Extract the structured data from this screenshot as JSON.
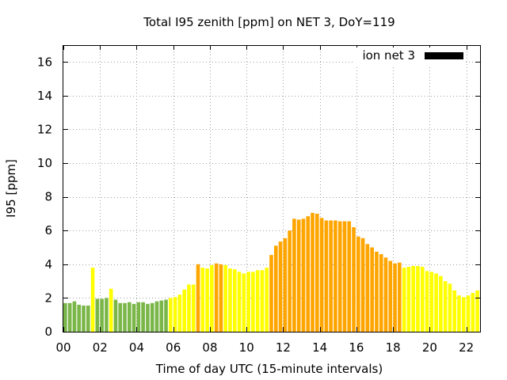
{
  "chart_data": {
    "type": "bar",
    "title": "Total I95 zenith [ppm] on NET 3, DoY=119",
    "xlabel": "Time of day UTC (15-minute intervals)",
    "ylabel": "I95 [ppm]",
    "xlim": [
      0,
      22.75
    ],
    "ylim": [
      0,
      17
    ],
    "x_tick_labels": [
      "00",
      "02",
      "04",
      "06",
      "08",
      "10",
      "12",
      "14",
      "16",
      "18",
      "20",
      "22"
    ],
    "y_tick_labels": [
      "0",
      "2",
      "4",
      "6",
      "8",
      "10",
      "12",
      "14",
      "16"
    ],
    "grid": true,
    "legend": {
      "label": "ion net 3",
      "color": "#000000",
      "position": "top-right"
    },
    "interval_hours": 0.25,
    "colors": {
      "G": "#7ab648",
      "Y": "#ffff00",
      "O": "#ffa500"
    },
    "values": [
      1.7,
      1.7,
      1.8,
      1.6,
      1.55,
      1.55,
      3.8,
      1.95,
      1.95,
      2.0,
      2.55,
      1.9,
      1.7,
      1.7,
      1.75,
      1.65,
      1.75,
      1.75,
      1.65,
      1.7,
      1.8,
      1.85,
      1.9,
      2.0,
      2.05,
      2.2,
      2.5,
      2.8,
      2.8,
      4.0,
      3.8,
      3.75,
      3.95,
      4.05,
      4.0,
      3.95,
      3.75,
      3.7,
      3.55,
      3.45,
      3.55,
      3.55,
      3.65,
      3.65,
      3.8,
      4.55,
      5.1,
      5.35,
      5.55,
      6.0,
      6.7,
      6.65,
      6.7,
      6.85,
      7.05,
      7.0,
      6.75,
      6.6,
      6.6,
      6.6,
      6.55,
      6.55,
      6.55,
      6.2,
      5.65,
      5.55,
      5.2,
      5.0,
      4.75,
      4.6,
      4.4,
      4.2,
      4.05,
      4.1,
      3.8,
      3.85,
      3.9,
      3.9,
      3.85,
      3.6,
      3.55,
      3.45,
      3.3,
      3.0,
      2.85,
      2.45,
      2.15,
      2.05,
      2.15,
      2.3,
      2.45
    ],
    "bar_colors": [
      "G",
      "G",
      "G",
      "G",
      "G",
      "G",
      "Y",
      "G",
      "G",
      "G",
      "Y",
      "G",
      "G",
      "G",
      "G",
      "G",
      "G",
      "G",
      "G",
      "G",
      "G",
      "G",
      "G",
      "Y",
      "Y",
      "Y",
      "Y",
      "Y",
      "Y",
      "O",
      "Y",
      "Y",
      "Y",
      "O",
      "O",
      "Y",
      "Y",
      "Y",
      "Y",
      "Y",
      "Y",
      "Y",
      "Y",
      "Y",
      "Y",
      "O",
      "O",
      "O",
      "O",
      "O",
      "O",
      "O",
      "O",
      "O",
      "O",
      "O",
      "O",
      "O",
      "O",
      "O",
      "O",
      "O",
      "O",
      "O",
      "O",
      "O",
      "O",
      "O",
      "O",
      "O",
      "O",
      "O",
      "O",
      "O",
      "Y",
      "Y",
      "Y",
      "Y",
      "Y",
      "Y",
      "Y",
      "Y",
      "Y",
      "Y",
      "Y",
      "Y",
      "Y",
      "Y",
      "Y",
      "Y",
      "Y"
    ]
  }
}
